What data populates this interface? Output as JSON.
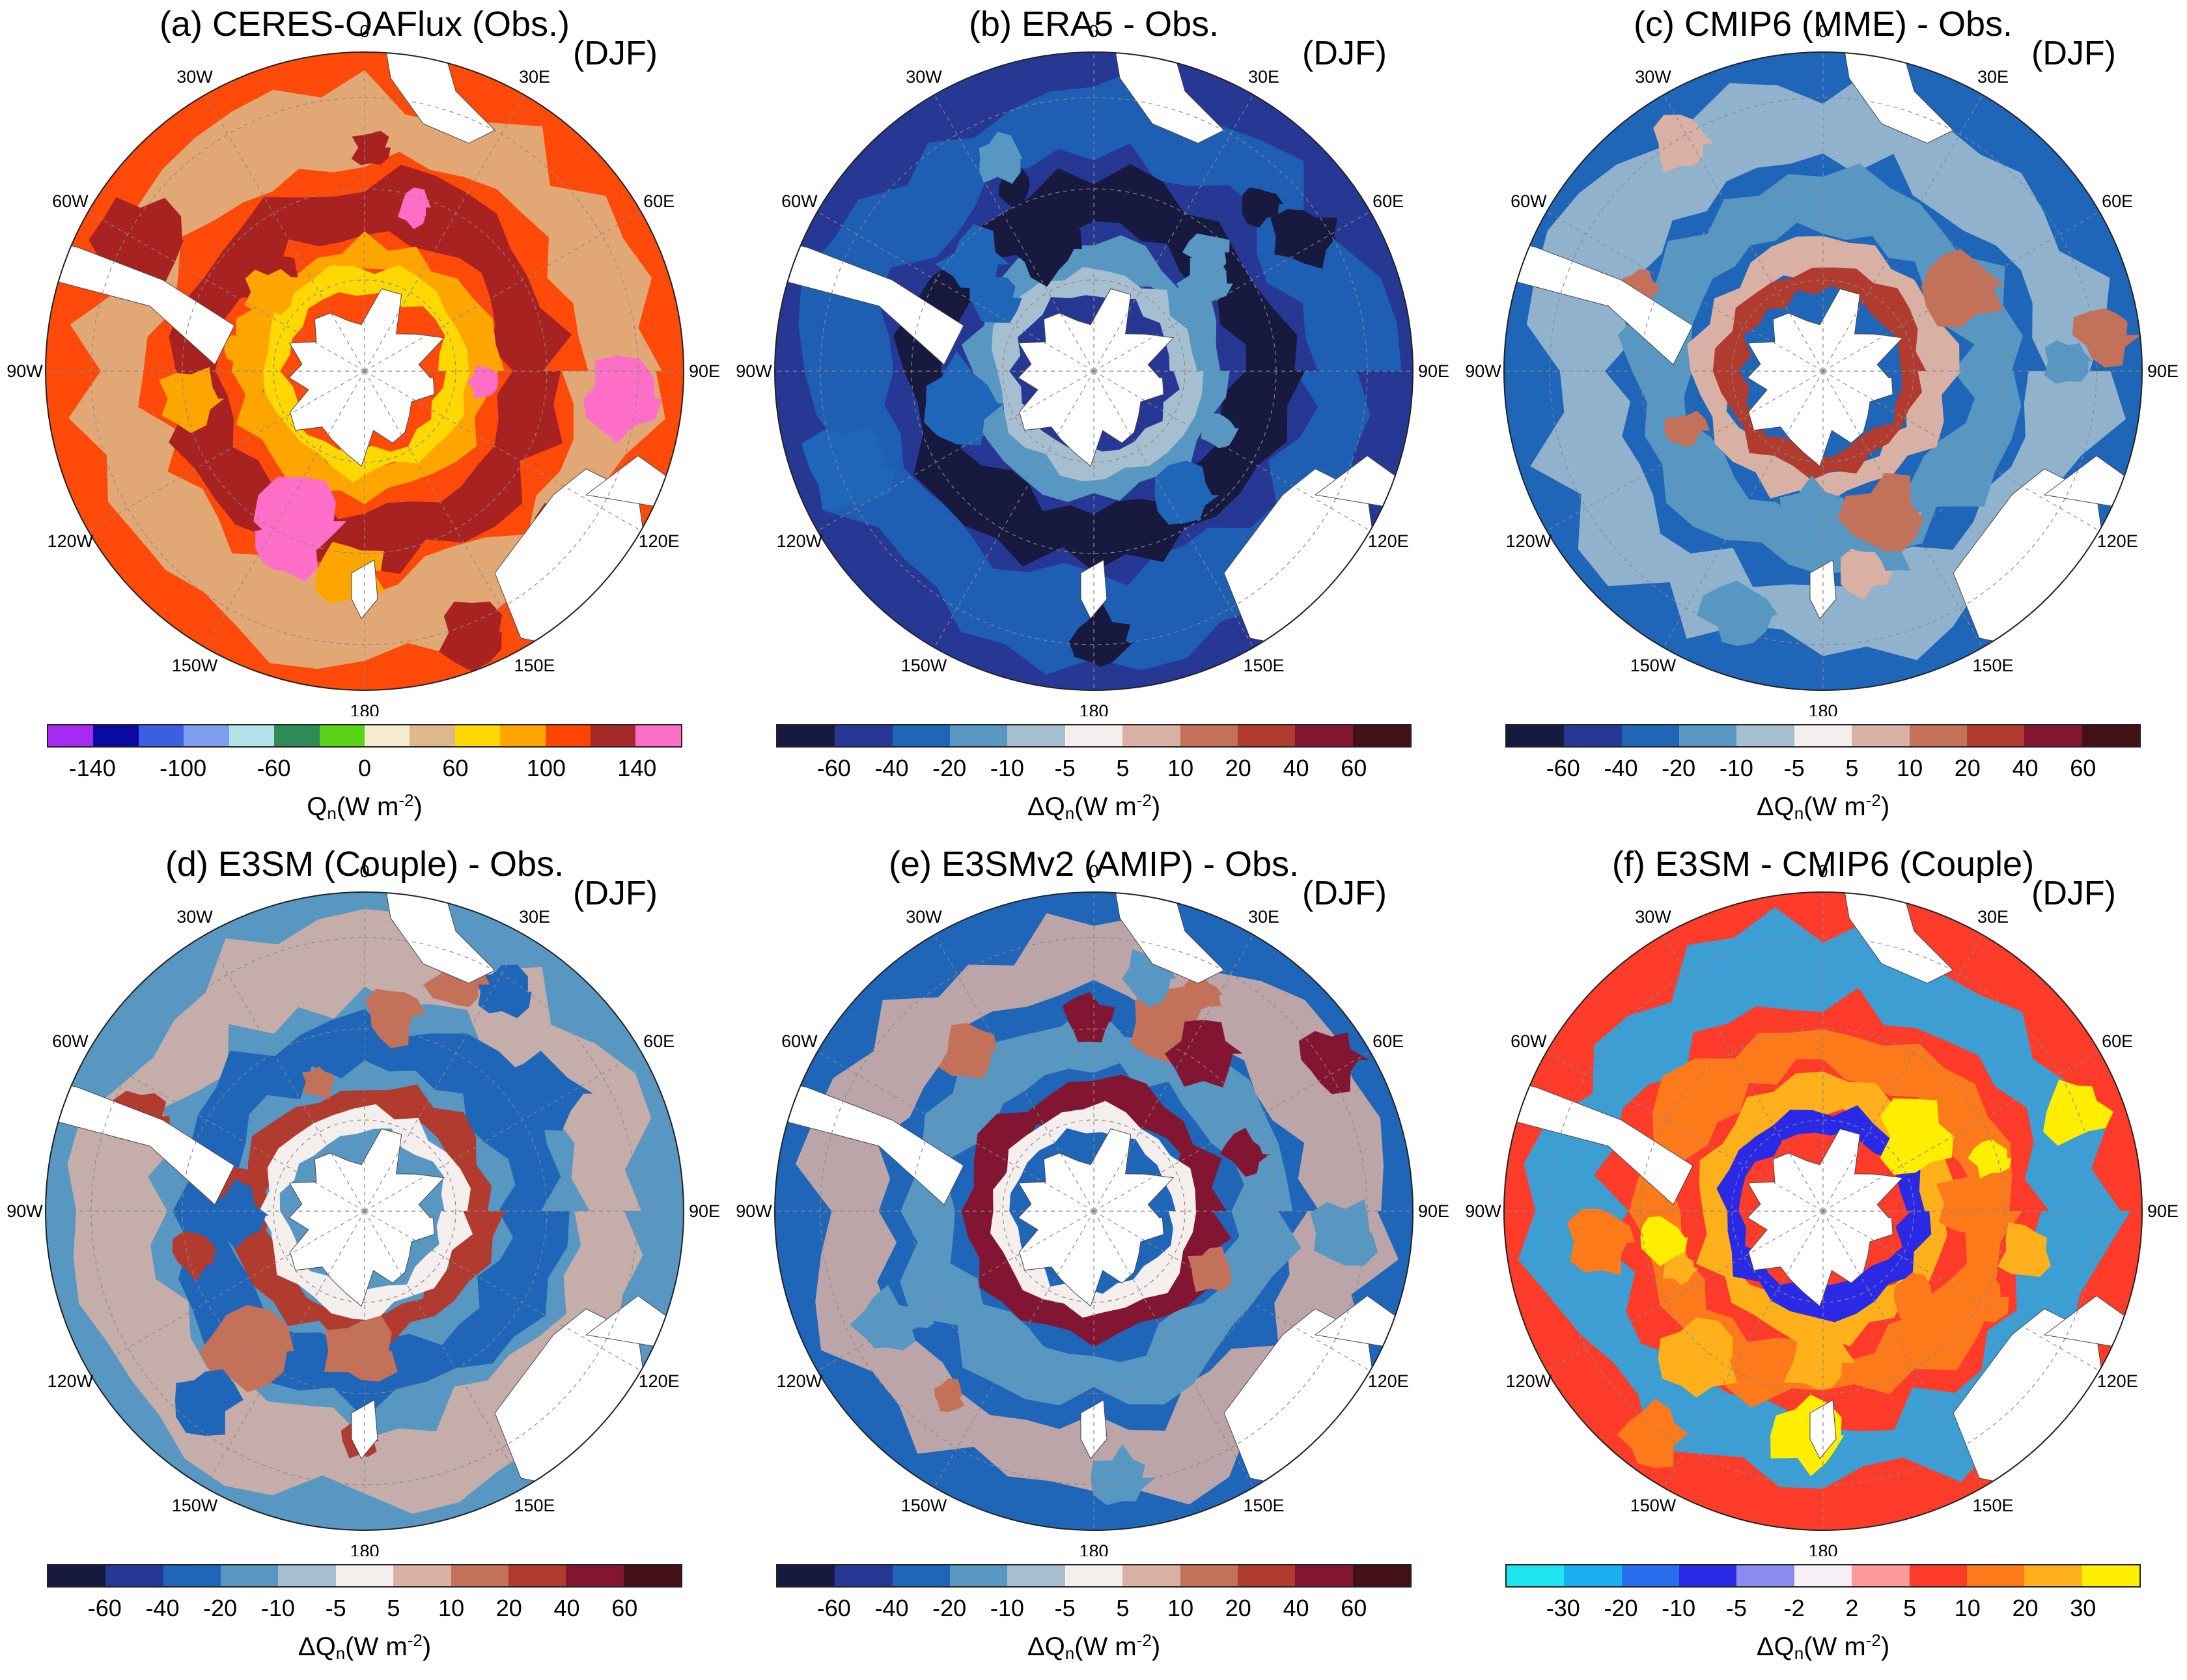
{
  "figure": {
    "panels": [
      {
        "id": "a",
        "title": "(a) CERES-OAFlux (Obs.)",
        "season": "(DJF)",
        "lon_labels": [
          "0",
          "30E",
          "60E",
          "90E",
          "120E",
          "150E",
          "180",
          "150W",
          "120W",
          "90W",
          "60W",
          "30W"
        ],
        "colorbar": {
          "colors": [
            "#a52af2",
            "#0a0aa0",
            "#3a5fe0",
            "#7f9ff0",
            "#b0e2e8",
            "#2e8b57",
            "#5ad417",
            "#f5ecd0",
            "#dcb88a",
            "#ffd800",
            "#ffa500",
            "#ff4500",
            "#a52a2a",
            "#ff6ec7"
          ],
          "ticks": [
            "-140",
            "-100",
            "-60",
            "0",
            "60",
            "100",
            "140"
          ],
          "tick_boundaries": [
            1,
            3,
            5,
            7,
            9,
            11,
            13
          ],
          "label_main": "Q",
          "label_sub": "n",
          "label_rest": "(W m",
          "label_sup": "-2",
          "label_end": ")"
        },
        "map_palette": {
          "main": "#ff4a0a",
          "warm": "#a82222",
          "hot": "#ff6ec7",
          "ring": "#ffa500",
          "ice": "#ffd800",
          "edge": "#dcb88a"
        }
      },
      {
        "id": "b",
        "title": "(b) ERA5 - Obs.",
        "season": "(DJF)",
        "lon_labels": [
          "0",
          "30E",
          "60E",
          "90E",
          "120E",
          "150E",
          "180",
          "150W",
          "120W",
          "90W",
          "60W",
          "30W"
        ],
        "colorbar": {
          "colors": [
            "#17193f",
            "#263894",
            "#1f66b8",
            "#5797c1",
            "#a5bfd0",
            "#f4efed",
            "#d8b0a4",
            "#c4715a",
            "#b03b2e",
            "#821632",
            "#431015"
          ],
          "ticks": [
            "-60",
            "-40",
            "-20",
            "-10",
            "-5",
            "5",
            "10",
            "20",
            "40",
            "60"
          ],
          "tick_boundaries": [
            1,
            2,
            3,
            4,
            5,
            6,
            7,
            8,
            9,
            10
          ],
          "label_main": "ΔQ",
          "label_sub": "n",
          "label_rest": "(W m",
          "label_sup": "-2",
          "label_end": ")"
        },
        "map_palette": {
          "main": "#263894",
          "warm": "#17193f",
          "hot": "#1f66b8",
          "ring": "#5797c1",
          "ice": "#a5bfd0",
          "edge": "#1f66b8"
        }
      },
      {
        "id": "c",
        "title": "(c) CMIP6 (MME) - Obs.",
        "season": "(DJF)",
        "lon_labels": [
          "0",
          "30E",
          "60E",
          "90E",
          "120E",
          "150E",
          "180",
          "150W",
          "120W",
          "90W",
          "60W",
          "30W"
        ],
        "colorbar": {
          "colors": [
            "#17193f",
            "#263894",
            "#1f66b8",
            "#5797c1",
            "#a5bfd0",
            "#f4efed",
            "#d8b0a4",
            "#c4715a",
            "#b03b2e",
            "#821632",
            "#431015"
          ],
          "ticks": [
            "-60",
            "-40",
            "-20",
            "-10",
            "-5",
            "5",
            "10",
            "20",
            "40",
            "60"
          ],
          "tick_boundaries": [
            1,
            2,
            3,
            4,
            5,
            6,
            7,
            8,
            9,
            10
          ],
          "label_main": "ΔQ",
          "label_sub": "n",
          "label_rest": "(W m",
          "label_sup": "-2",
          "label_end": ")"
        },
        "map_palette": {
          "main": "#1f66b8",
          "warm": "#5797c1",
          "hot": "#c4715a",
          "ring": "#d8b0a4",
          "ice": "#b03b2e",
          "edge": "#a5bfd0"
        }
      },
      {
        "id": "d",
        "title": "(d) E3SM (Couple) - Obs.",
        "season": "(DJF)",
        "lon_labels": [
          "0",
          "30E",
          "60E",
          "90E",
          "120E",
          "150E",
          "180",
          "150W",
          "120W",
          "90W",
          "60W",
          "30W"
        ],
        "colorbar": {
          "colors": [
            "#17193f",
            "#263894",
            "#1f66b8",
            "#5797c1",
            "#a5bfd0",
            "#f4efed",
            "#d8b0a4",
            "#c4715a",
            "#b03b2e",
            "#821632",
            "#431015"
          ],
          "ticks": [
            "-60",
            "-40",
            "-20",
            "-10",
            "-5",
            "5",
            "10",
            "20",
            "40",
            "60"
          ],
          "tick_boundaries": [
            1,
            2,
            3,
            4,
            5,
            6,
            7,
            8,
            9,
            10
          ],
          "label_main": "ΔQ",
          "label_sub": "n",
          "label_rest": "(W m",
          "label_sup": "-2",
          "label_end": ")"
        },
        "map_palette": {
          "main": "#5797c1",
          "warm": "#1f66b8",
          "hot": "#c4715a",
          "ring": "#b03b2e",
          "ice": "#f4efed",
          "edge": "#d8b0a4"
        }
      },
      {
        "id": "e",
        "title": "(e) E3SMv2 (AMIP) - Obs.",
        "season": "(DJF)",
        "lon_labels": [
          "0",
          "30E",
          "60E",
          "90E",
          "120E",
          "150E",
          "180",
          "150W",
          "120W",
          "90W",
          "60W",
          "30W"
        ],
        "colorbar": {
          "colors": [
            "#17193f",
            "#263894",
            "#1f66b8",
            "#5797c1",
            "#a5bfd0",
            "#f4efed",
            "#d8b0a4",
            "#c4715a",
            "#b03b2e",
            "#821632",
            "#431015"
          ],
          "ticks": [
            "-60",
            "-40",
            "-20",
            "-10",
            "-5",
            "5",
            "10",
            "20",
            "40",
            "60"
          ],
          "tick_boundaries": [
            1,
            2,
            3,
            4,
            5,
            6,
            7,
            8,
            9,
            10
          ],
          "label_main": "ΔQ",
          "label_sub": "n",
          "label_rest": "(W m",
          "label_sup": "-2",
          "label_end": ")"
        },
        "map_palette": {
          "main": "#1f66b8",
          "warm": "#5797c1",
          "hot": "#c4715a",
          "ring": "#821632",
          "ice": "#f4efed",
          "edge": "#d8b0a4"
        }
      },
      {
        "id": "f",
        "title": "(f) E3SM - CMIP6 (Couple)",
        "season": "(DJF)",
        "lon_labels": [
          "0",
          "30E",
          "60E",
          "90E",
          "120E",
          "150E",
          "180",
          "150W",
          "120W",
          "90W",
          "60W",
          "30W"
        ],
        "colorbar": {
          "colors": [
            "#1de6f0",
            "#1ab0f0",
            "#2a6ef0",
            "#2a2ae6",
            "#8a8af0",
            "#f6f0f6",
            "#ff9a9a",
            "#ff3b2a",
            "#ff7a1a",
            "#ffb01a",
            "#ffee00"
          ],
          "ticks": [
            "-30",
            "-20",
            "-10",
            "-5",
            "-2",
            "2",
            "5",
            "10",
            "20",
            "30"
          ],
          "tick_boundaries": [
            1,
            2,
            3,
            4,
            5,
            6,
            7,
            8,
            9,
            10
          ],
          "label_main": "ΔQ",
          "label_sub": "n",
          "label_rest": "(W m",
          "label_sup": "-2",
          "label_end": ")"
        },
        "map_palette": {
          "main": "#ff3b2a",
          "warm": "#ff7a1a",
          "hot": "#ffee00",
          "ring": "#ffb01a",
          "ice": "#2a2ae6",
          "edge": "#1ab0f0"
        }
      }
    ]
  }
}
